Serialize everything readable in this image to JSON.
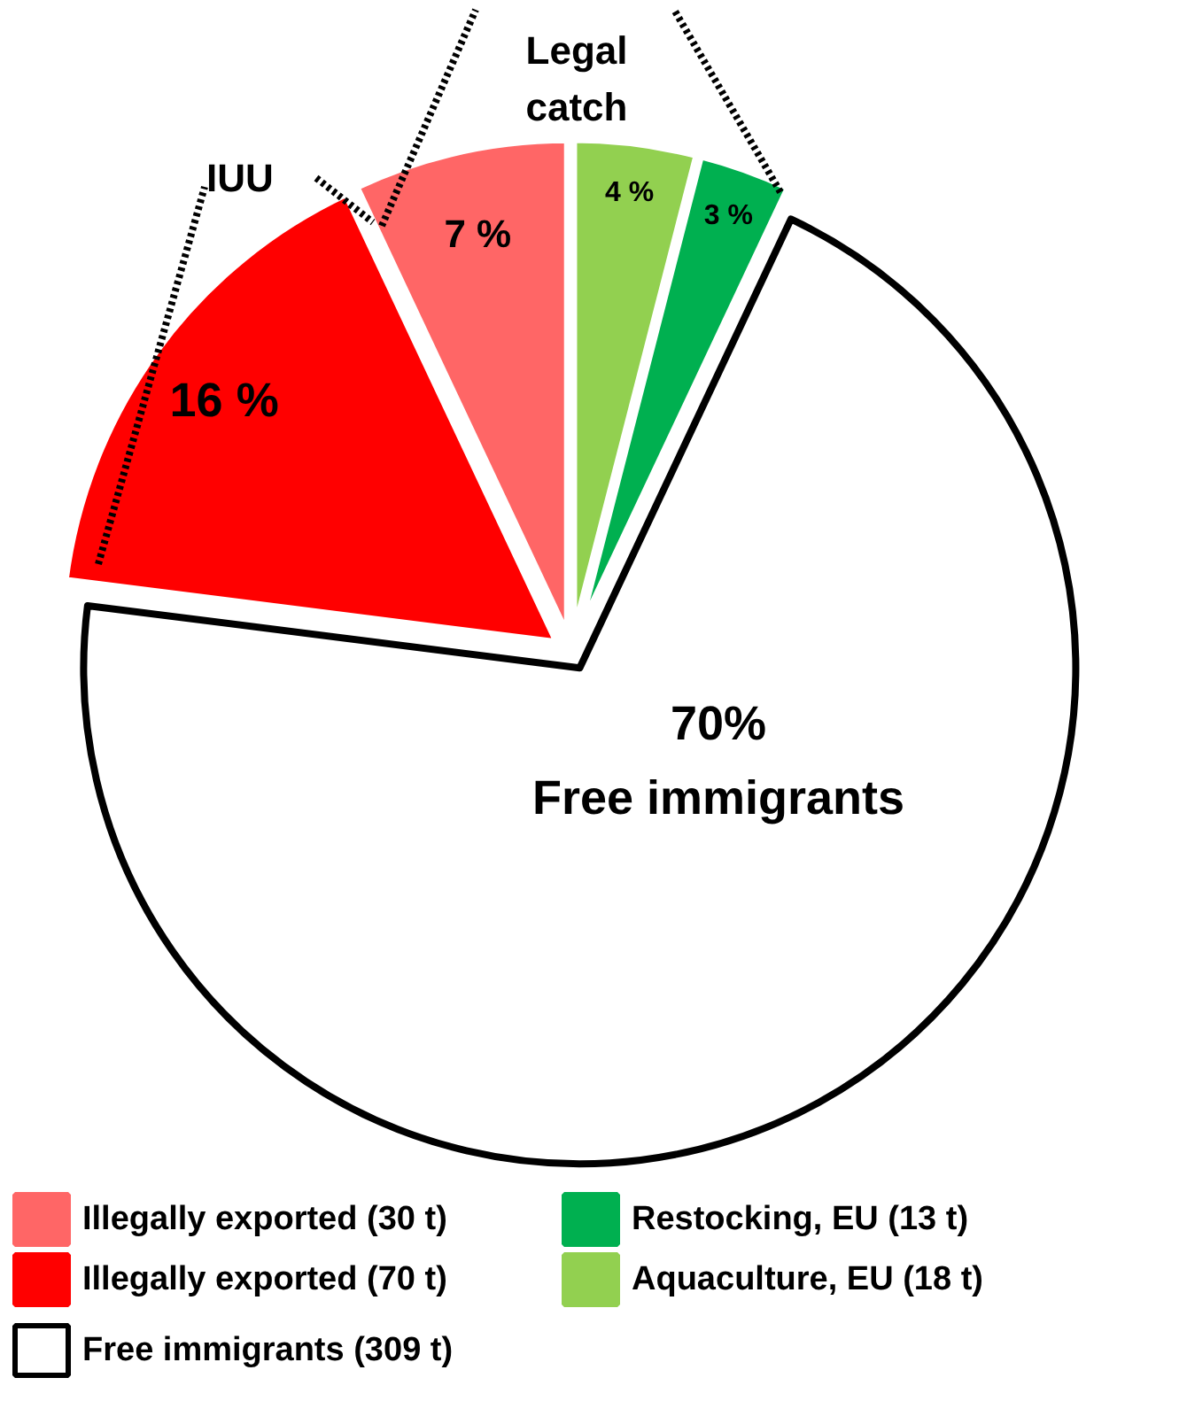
{
  "chart_data": {
    "type": "pie",
    "categories": [
      "Illegally exported  (30 t)",
      "Illegally exported (70 t)",
      "Free immigrants (309 t)",
      "Restocking, EU (13 t)",
      "Aquaculture, EU (18 t)"
    ],
    "values": [
      7,
      16,
      70,
      3,
      4
    ],
    "colors": [
      "#ff6666",
      "#ff0000",
      "#ffffff",
      "#00b050",
      "#92d050"
    ],
    "value_labels": [
      "7 %",
      "16 %",
      "70%",
      "3 %",
      "4 %"
    ],
    "annotations": [
      "Free immigrants",
      "IUU",
      "Legal catch"
    ],
    "legend": "bottom"
  }
}
